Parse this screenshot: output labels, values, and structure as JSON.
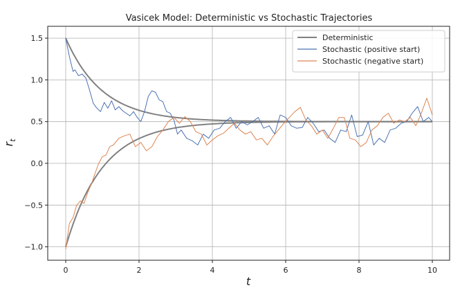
{
  "chart_data": {
    "type": "line",
    "title": "Vasicek Model: Deterministic vs Stochastic Trajectories",
    "xlabel": "t",
    "ylabel": "r_t",
    "xlim": [
      -0.5,
      10.5
    ],
    "ylim": [
      -1.15,
      1.62
    ],
    "xticks": [
      0,
      2,
      4,
      6,
      8,
      10
    ],
    "xtick_labels": [
      "0",
      "2",
      "4",
      "6",
      "8",
      "10"
    ],
    "yticks": [
      -1.0,
      -0.5,
      0.0,
      0.5,
      1.0,
      1.5
    ],
    "ytick_labels": [
      "−1.0",
      "−0.5",
      "0.0",
      "0.5",
      "1.0",
      "1.5"
    ],
    "grid": true,
    "legend_position": "top-right",
    "series": [
      {
        "name": "Deterministic",
        "color": "#808080",
        "model": {
          "theta": 0.5,
          "kappa": 1.0
        },
        "x": [
          0,
          0.25,
          0.5,
          0.75,
          1,
          1.25,
          1.5,
          1.75,
          2,
          2.5,
          3,
          3.5,
          4,
          5,
          6,
          7,
          8,
          9,
          10
        ],
        "values_from_pos": [
          1.5,
          1.279,
          1.107,
          0.972,
          0.868,
          0.787,
          0.723,
          0.674,
          0.635,
          0.582,
          0.55,
          0.53,
          0.518,
          0.507,
          0.502,
          0.501,
          0.5,
          0.5,
          0.5
        ],
        "values_from_neg": [
          -1.0,
          -0.668,
          -0.409,
          -0.208,
          -0.052,
          0.071,
          0.165,
          0.239,
          0.297,
          0.377,
          0.425,
          0.455,
          0.473,
          0.49,
          0.496,
          0.499,
          0.5,
          0.5,
          0.5
        ]
      },
      {
        "name": "Stochastic (positive start)",
        "color": "#4c72b0",
        "x": [
          0,
          0.1,
          0.2,
          0.25,
          0.35,
          0.45,
          0.55,
          0.65,
          0.75,
          0.85,
          0.95,
          1.05,
          1.15,
          1.25,
          1.35,
          1.45,
          1.55,
          1.65,
          1.75,
          1.85,
          1.95,
          2.05,
          2.15,
          2.25,
          2.35,
          2.45,
          2.55,
          2.65,
          2.75,
          2.85,
          2.95,
          3.05,
          3.15,
          3.3,
          3.45,
          3.6,
          3.75,
          3.9,
          4.05,
          4.2,
          4.35,
          4.5,
          4.65,
          4.8,
          4.95,
          5.1,
          5.25,
          5.4,
          5.55,
          5.7,
          5.85,
          6.0,
          6.15,
          6.3,
          6.45,
          6.6,
          6.75,
          6.9,
          7.05,
          7.2,
          7.35,
          7.5,
          7.65,
          7.8,
          7.95,
          8.1,
          8.25,
          8.4,
          8.55,
          8.7,
          8.85,
          9.0,
          9.15,
          9.3,
          9.45,
          9.6,
          9.75,
          9.9,
          10.0
        ],
        "values": [
          1.5,
          1.28,
          1.1,
          1.12,
          1.05,
          1.07,
          1.02,
          0.88,
          0.72,
          0.66,
          0.62,
          0.73,
          0.66,
          0.75,
          0.64,
          0.68,
          0.63,
          0.6,
          0.57,
          0.62,
          0.55,
          0.5,
          0.62,
          0.8,
          0.87,
          0.85,
          0.76,
          0.74,
          0.62,
          0.6,
          0.52,
          0.35,
          0.4,
          0.3,
          0.27,
          0.22,
          0.35,
          0.3,
          0.4,
          0.42,
          0.5,
          0.55,
          0.42,
          0.5,
          0.46,
          0.5,
          0.55,
          0.42,
          0.45,
          0.35,
          0.58,
          0.55,
          0.45,
          0.42,
          0.43,
          0.55,
          0.48,
          0.38,
          0.4,
          0.3,
          0.25,
          0.4,
          0.38,
          0.58,
          0.32,
          0.34,
          0.5,
          0.22,
          0.3,
          0.25,
          0.4,
          0.42,
          0.48,
          0.5,
          0.6,
          0.68,
          0.5,
          0.55,
          0.5
        ]
      },
      {
        "name": "Stochastic (negative start)",
        "color": "#dd8452",
        "x": [
          0,
          0.1,
          0.2,
          0.3,
          0.4,
          0.5,
          0.6,
          0.7,
          0.8,
          0.9,
          1.0,
          1.1,
          1.2,
          1.3,
          1.45,
          1.6,
          1.75,
          1.9,
          2.05,
          2.2,
          2.35,
          2.5,
          2.65,
          2.8,
          2.95,
          3.1,
          3.25,
          3.4,
          3.55,
          3.7,
          3.85,
          4.0,
          4.15,
          4.3,
          4.45,
          4.6,
          4.75,
          4.9,
          5.05,
          5.2,
          5.35,
          5.5,
          5.65,
          5.8,
          5.95,
          6.1,
          6.25,
          6.4,
          6.55,
          6.7,
          6.85,
          7.0,
          7.15,
          7.3,
          7.45,
          7.6,
          7.75,
          7.9,
          8.05,
          8.2,
          8.35,
          8.5,
          8.65,
          8.8,
          8.95,
          9.1,
          9.25,
          9.4,
          9.55,
          9.7,
          9.85,
          10.0
        ],
        "values": [
          -1.03,
          -0.72,
          -0.65,
          -0.5,
          -0.45,
          -0.48,
          -0.35,
          -0.25,
          -0.12,
          0.0,
          0.08,
          0.1,
          0.2,
          0.22,
          0.3,
          0.33,
          0.35,
          0.2,
          0.25,
          0.15,
          0.2,
          0.32,
          0.4,
          0.5,
          0.55,
          0.48,
          0.56,
          0.5,
          0.38,
          0.35,
          0.22,
          0.28,
          0.33,
          0.36,
          0.42,
          0.48,
          0.4,
          0.35,
          0.38,
          0.28,
          0.3,
          0.22,
          0.32,
          0.4,
          0.48,
          0.55,
          0.62,
          0.67,
          0.52,
          0.45,
          0.35,
          0.4,
          0.3,
          0.42,
          0.55,
          0.55,
          0.3,
          0.28,
          0.2,
          0.25,
          0.4,
          0.45,
          0.55,
          0.6,
          0.48,
          0.52,
          0.5,
          0.55,
          0.45,
          0.6,
          0.78,
          0.58
        ]
      }
    ]
  }
}
